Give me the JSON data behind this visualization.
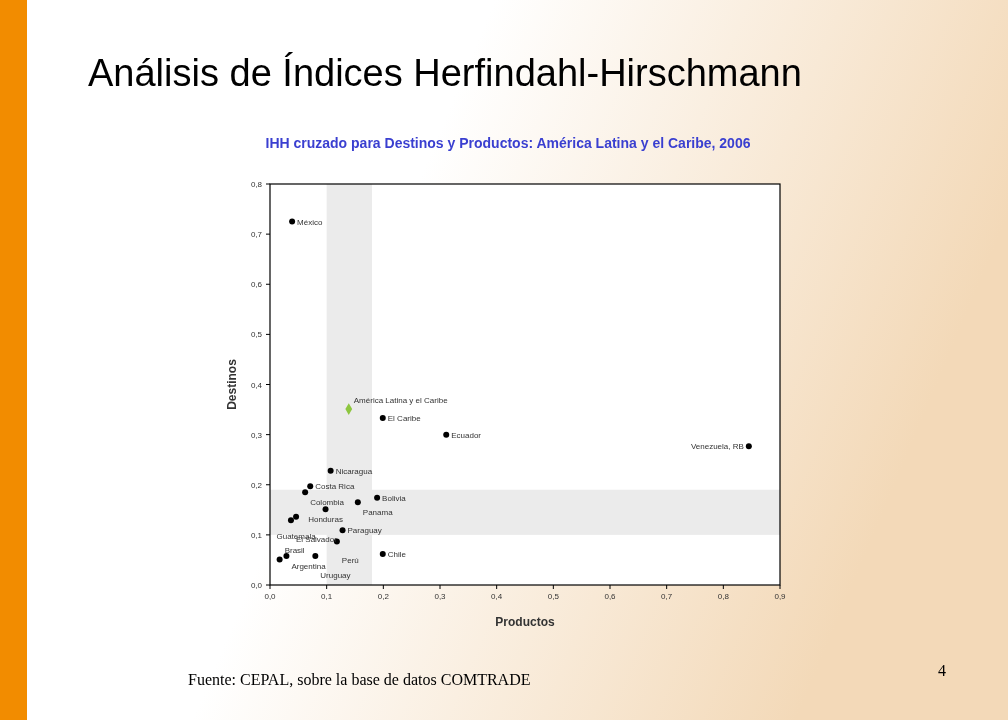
{
  "chart_data": {
    "type": "scatter",
    "title": "Análisis de Índices Herfindahl-Hirschmann",
    "subtitle": "IHH cruzado para Destinos y Productos: América Latina y el Caribe, 2006",
    "xlabel": "Productos",
    "ylabel": "Destinos",
    "xlim": [
      0,
      0.9
    ],
    "ylim": [
      0,
      0.8
    ],
    "xticks": [
      {
        "value": 0,
        "label": "0,0"
      },
      {
        "value": 0.1,
        "label": "0,1"
      },
      {
        "value": 0.2,
        "label": "0,2"
      },
      {
        "value": 0.3,
        "label": "0,3"
      },
      {
        "value": 0.4,
        "label": "0,4"
      },
      {
        "value": 0.5,
        "label": "0,5"
      },
      {
        "value": 0.6,
        "label": "0,6"
      },
      {
        "value": 0.7,
        "label": "0,7"
      },
      {
        "value": 0.8,
        "label": "0,8"
      },
      {
        "value": 0.9,
        "label": "0,9"
      }
    ],
    "yticks": [
      {
        "value": 0,
        "label": "0,0"
      },
      {
        "value": 0.1,
        "label": "0,1"
      },
      {
        "value": 0.2,
        "label": "0,2"
      },
      {
        "value": 0.3,
        "label": "0,3"
      },
      {
        "value": 0.4,
        "label": "0,4"
      },
      {
        "value": 0.5,
        "label": "0,5"
      },
      {
        "value": 0.6,
        "label": "0,6"
      },
      {
        "value": 0.7,
        "label": "0,7"
      },
      {
        "value": 0.8,
        "label": "0,8"
      }
    ],
    "grid": false,
    "bands": [
      {
        "axis": "x",
        "from": 0.1,
        "to": 0.18,
        "color": "#ebebeb"
      },
      {
        "axis": "y",
        "from": 0.1,
        "to": 0.19,
        "color": "#ebebeb"
      }
    ],
    "series": [
      {
        "color": "#000000",
        "marker": "circle",
        "x": [
          0.039,
          0.199,
          0.311,
          0.845,
          0.107,
          0.071,
          0.062,
          0.189,
          0.155,
          0.098,
          0.046,
          0.037,
          0.128,
          0.118,
          0.029,
          0.017,
          0.08,
          0.199
        ],
        "values": [
          0.725,
          0.333,
          0.3,
          0.277,
          0.228,
          0.197,
          0.185,
          0.174,
          0.165,
          0.151,
          0.136,
          0.129,
          0.109,
          0.087,
          0.058,
          0.051,
          0.058,
          0.062
        ]
      },
      {
        "color": "#8dc63f",
        "marker": "diamond",
        "x": [
          0.139
        ],
        "values": [
          0.351
        ]
      }
    ],
    "annotations": [
      {
        "text": "México",
        "x": 0.039,
        "y": 0.725
      },
      {
        "text": "El Caribe",
        "x": 0.199,
        "y": 0.333
      },
      {
        "text": "Ecuador",
        "x": 0.311,
        "y": 0.3
      },
      {
        "text": "Venezuela, RB",
        "x": 0.845,
        "y": 0.277
      },
      {
        "text": "Nicaragua",
        "x": 0.107,
        "y": 0.228
      },
      {
        "text": "Costa Rica",
        "x": 0.071,
        "y": 0.197
      },
      {
        "text": "Colombia",
        "x": 0.062,
        "y": 0.185
      },
      {
        "text": "Bolivia",
        "x": 0.189,
        "y": 0.174
      },
      {
        "text": "Panama",
        "x": 0.155,
        "y": 0.165
      },
      {
        "text": "Honduras",
        "x": 0.098,
        "y": 0.151
      },
      {
        "text": "Guatemala",
        "x": 0.046,
        "y": 0.136
      },
      {
        "text": "El Salvador",
        "x": 0.037,
        "y": 0.129
      },
      {
        "text": "Paraguay",
        "x": 0.128,
        "y": 0.109
      },
      {
        "text": "Perú",
        "x": 0.118,
        "y": 0.087
      },
      {
        "text": "Argentina",
        "x": 0.029,
        "y": 0.058
      },
      {
        "text": "Brasil",
        "x": 0.017,
        "y": 0.051
      },
      {
        "text": "Uruguay",
        "x": 0.08,
        "y": 0.058
      },
      {
        "text": "Chile",
        "x": 0.199,
        "y": 0.062
      },
      {
        "text": "América Latina y el Caribe",
        "x": 0.139,
        "y": 0.351
      },
      "Fuente: CEPAL, sobre la base de datos COMTRADE",
      "4"
    ]
  }
}
